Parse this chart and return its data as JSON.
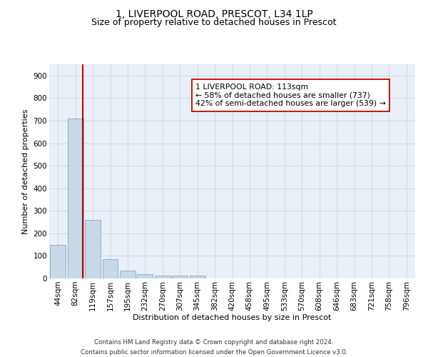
{
  "title_line1": "1, LIVERPOOL ROAD, PRESCOT, L34 1LP",
  "title_line2": "Size of property relative to detached houses in Prescot",
  "xlabel": "Distribution of detached houses by size in Prescot",
  "ylabel": "Number of detached properties",
  "footnote": "Contains HM Land Registry data © Crown copyright and database right 2024.\nContains public sector information licensed under the Open Government Licence v3.0.",
  "bin_labels": [
    "44sqm",
    "82sqm",
    "119sqm",
    "157sqm",
    "195sqm",
    "232sqm",
    "270sqm",
    "307sqm",
    "345sqm",
    "382sqm",
    "420sqm",
    "458sqm",
    "495sqm",
    "533sqm",
    "570sqm",
    "608sqm",
    "646sqm",
    "683sqm",
    "721sqm",
    "758sqm",
    "796sqm"
  ],
  "bar_heights": [
    148,
    710,
    260,
    85,
    35,
    20,
    12,
    12,
    12,
    0,
    0,
    0,
    0,
    0,
    0,
    0,
    0,
    0,
    0,
    0,
    0
  ],
  "bar_color": "#c8d8e8",
  "bar_edge_color": "#7aaac8",
  "vline_x": 1.42,
  "vline_color": "#cc0000",
  "annotation_text": "1 LIVERPOOL ROAD: 113sqm\n← 58% of detached houses are smaller (737)\n42% of semi-detached houses are larger (539) →",
  "annotation_box_color": "#ffffff",
  "annotation_box_edge": "#cc0000",
  "ylim": [
    0,
    950
  ],
  "yticks": [
    0,
    100,
    200,
    300,
    400,
    500,
    600,
    700,
    800,
    900
  ],
  "grid_color": "#d0d8e8",
  "background_color": "#eaf0f8",
  "title_fontsize": 10,
  "subtitle_fontsize": 9,
  "axis_label_fontsize": 8,
  "tick_fontsize": 7.5,
  "footnote_fontsize": 6.2
}
